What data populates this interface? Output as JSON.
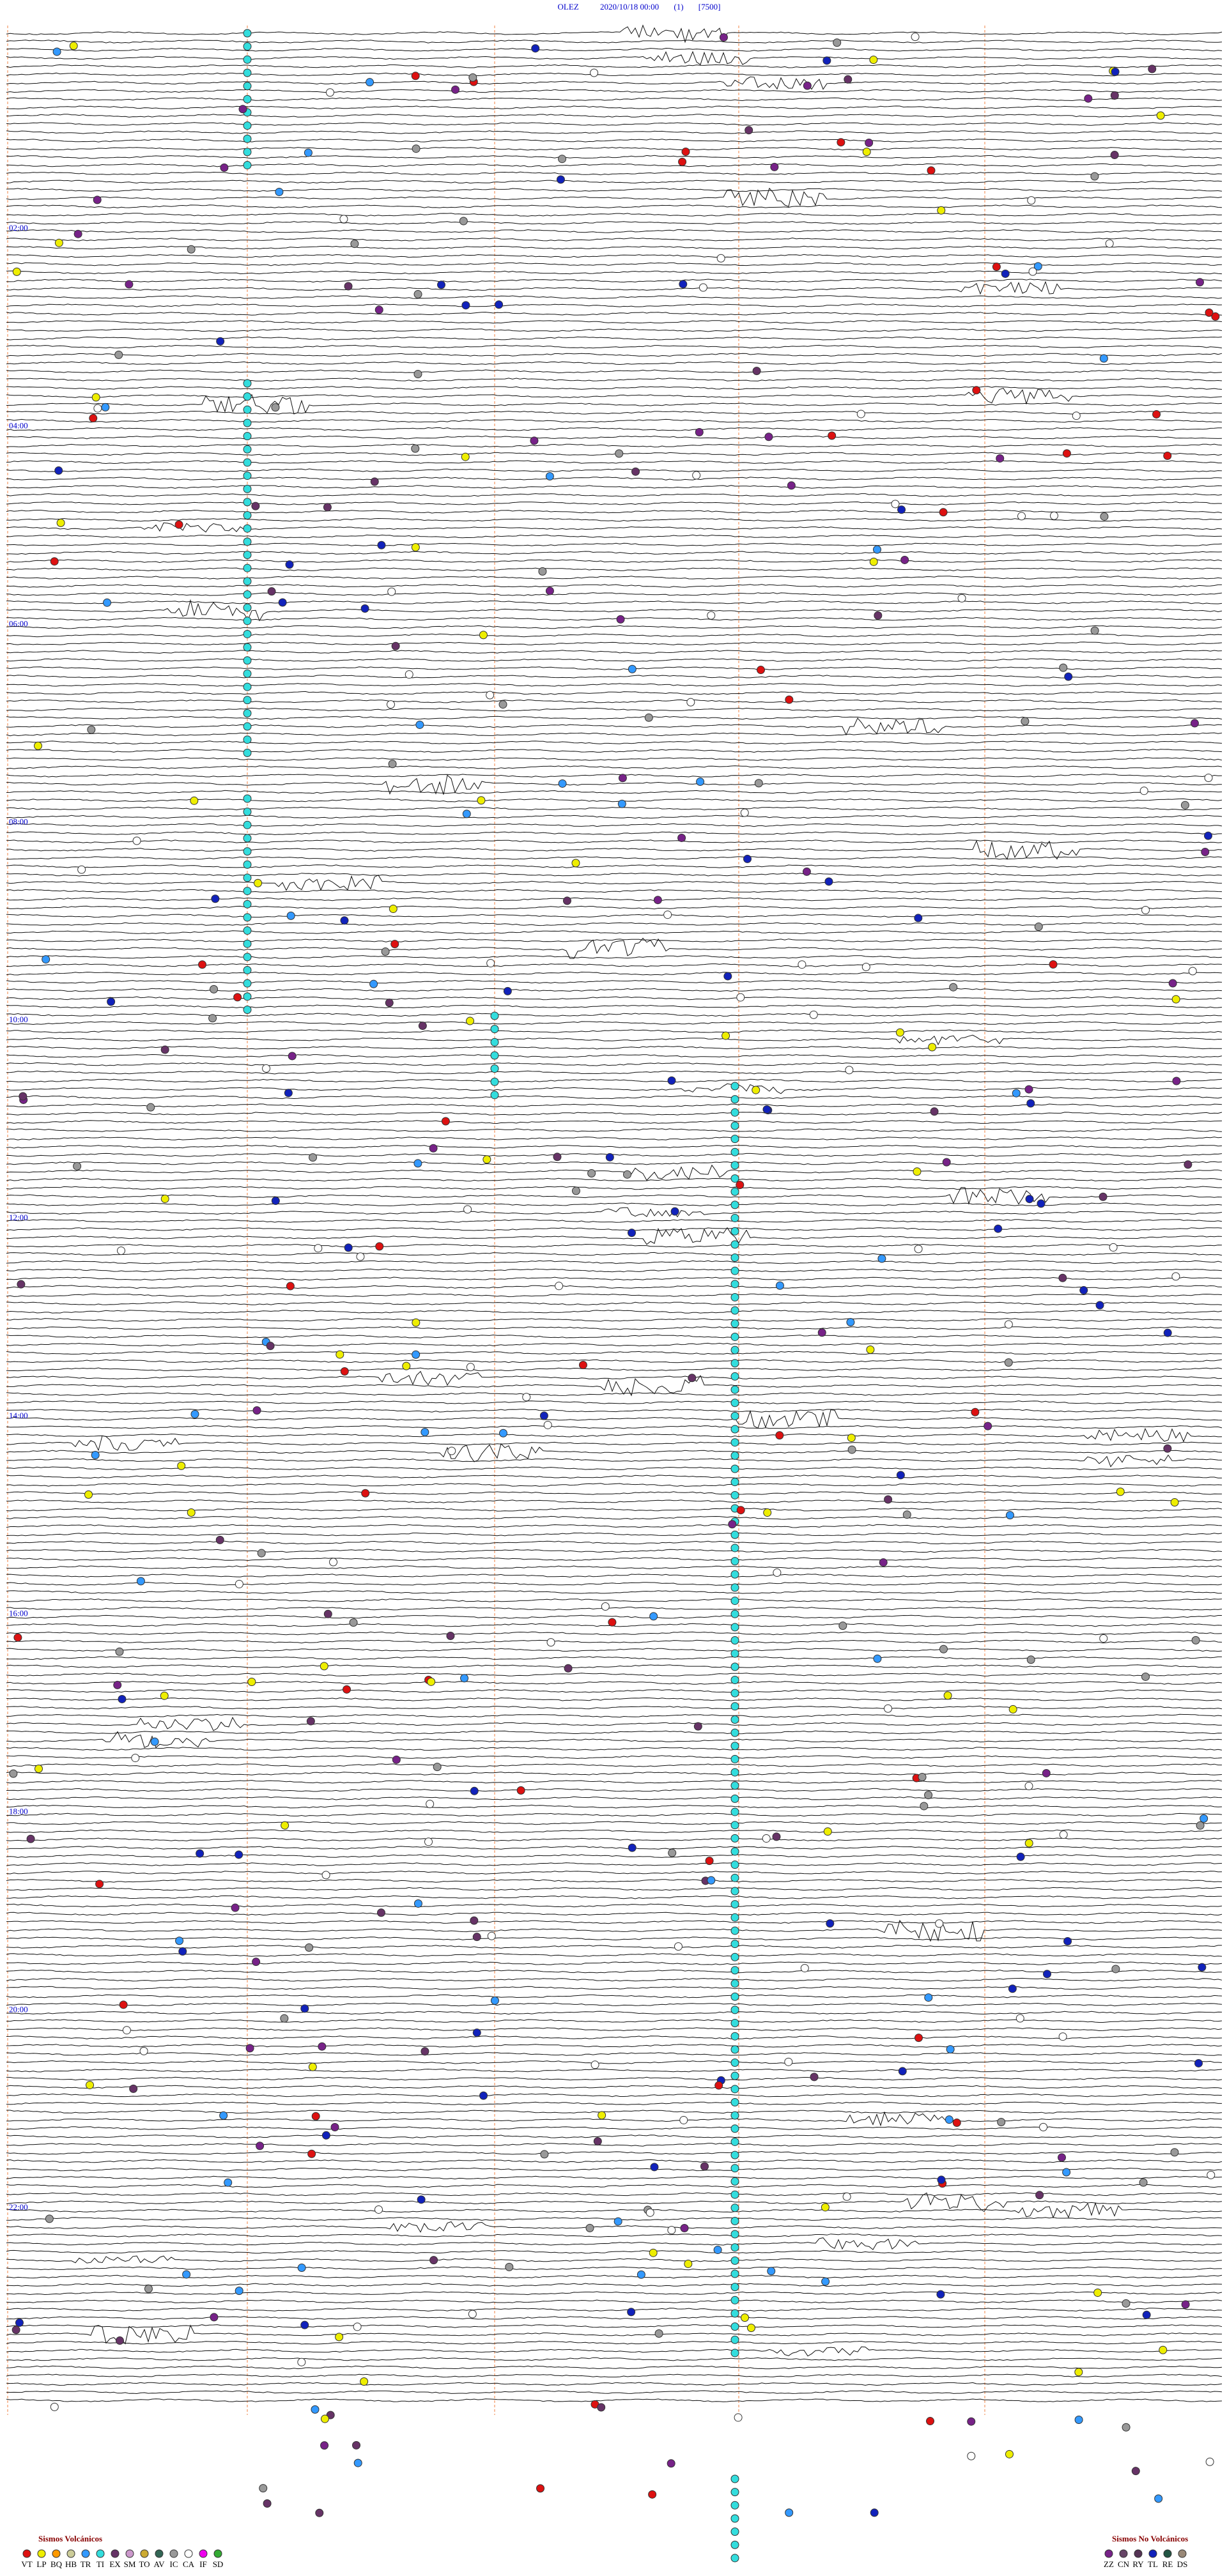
{
  "header": {
    "station": "OLEZ",
    "datetime": "2020/10/18 00:00",
    "index": "(1)",
    "scale": "[7500]"
  },
  "hour_labels": [
    "02:00",
    "04:00",
    "06:00",
    "08:00",
    "10:00",
    "12:00",
    "14:00",
    "16:00",
    "18:00",
    "20:00",
    "22:00"
  ],
  "legend_volcanic": {
    "title": "Sismos Volcánicos",
    "items": [
      {
        "code": "VT",
        "color": "#dd1111"
      },
      {
        "code": "LP",
        "color": "#eeee00"
      },
      {
        "code": "BQ",
        "color": "#ff9900"
      },
      {
        "code": "HB",
        "color": "#cccc99"
      },
      {
        "code": "TR",
        "color": "#3399ff"
      },
      {
        "code": "TI",
        "color": "#33dddd"
      },
      {
        "code": "EX",
        "color": "#663366"
      },
      {
        "code": "SM",
        "color": "#cc99cc"
      },
      {
        "code": "TO",
        "color": "#ccaa33"
      },
      {
        "code": "AV",
        "color": "#336655"
      },
      {
        "code": "IC",
        "color": "#999999"
      },
      {
        "code": "CA",
        "color": "#ffffff"
      },
      {
        "code": "IF",
        "color": "#ee00ee"
      },
      {
        "code": "SD",
        "color": "#33aa33"
      }
    ]
  },
  "legend_non_volcanic": {
    "title": "Sismos No Volcánicos",
    "items": [
      {
        "code": "ZZ",
        "color": "#772288"
      },
      {
        "code": "CN",
        "color": "#664466"
      },
      {
        "code": "RY",
        "color": "#553355"
      },
      {
        "code": "TL",
        "color": "#1122bb"
      },
      {
        "code": "RE",
        "color": "#225544"
      },
      {
        "code": "DS",
        "color": "#998877"
      }
    ]
  }
}
